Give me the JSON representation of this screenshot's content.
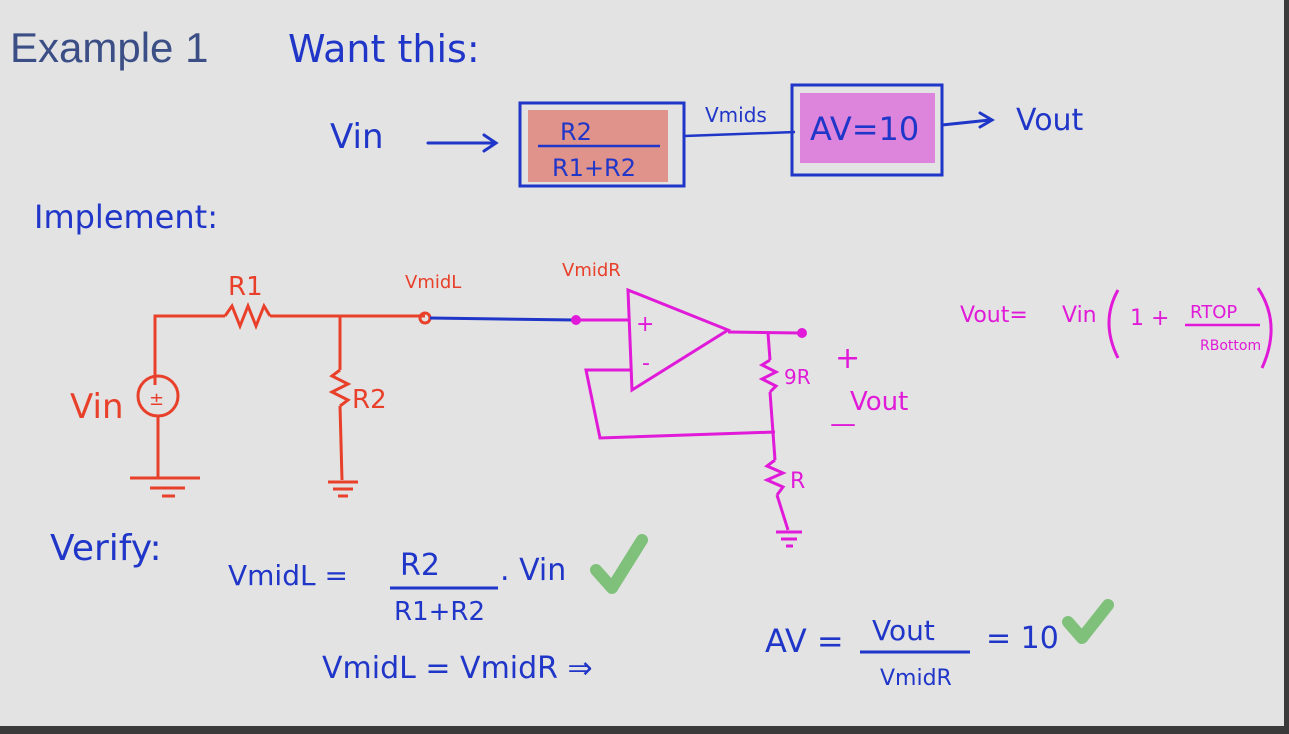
{
  "title": "Example 1",
  "block_diagram": {
    "heading": "Want this:",
    "input_label": "Vin",
    "divider_numerator": "R2",
    "divider_denominator": "R1+R2",
    "mid_label": "Vmids",
    "gain_label": "AV=10",
    "output_label": "Vout",
    "colors": {
      "divider_fill": "#e0938a",
      "gain_fill": "#dd84dd",
      "ink": "#1f36c8"
    }
  },
  "implement": {
    "heading": "Implement:",
    "r1_label": "R1",
    "r2_label": "R2",
    "vin_label": "Vin",
    "vmidL_label": "VmidL",
    "vmidR_label": "VmidR",
    "plus_input": "+",
    "minus_input": "-",
    "r_top_label": "9R",
    "r_bottom_label": "R",
    "out_plus": "+",
    "out_label": "Vout",
    "out_minus": "—",
    "colors": {
      "red_ink": "#e8402a",
      "magenta_ink": "#e01ad8",
      "blue_wire": "#1f36c8"
    }
  },
  "formula": {
    "lhs": "Vout=",
    "vin": "Vin",
    "one_plus": "1 +",
    "num": "RTOP",
    "den": "RBottom"
  },
  "verify": {
    "heading": "Verify:",
    "eq1_lhs": "VmidL =",
    "eq1_num": "R2",
    "eq1_den": "R1+R2",
    "eq1_tail": ". Vin",
    "eq2": "VmidL = VmidR ⇒",
    "eq3_lhs": "AV =",
    "eq3_num": "Vout",
    "eq3_den": "VmidR",
    "eq3_tail": "= 10",
    "check_color": "#7fc07a"
  }
}
